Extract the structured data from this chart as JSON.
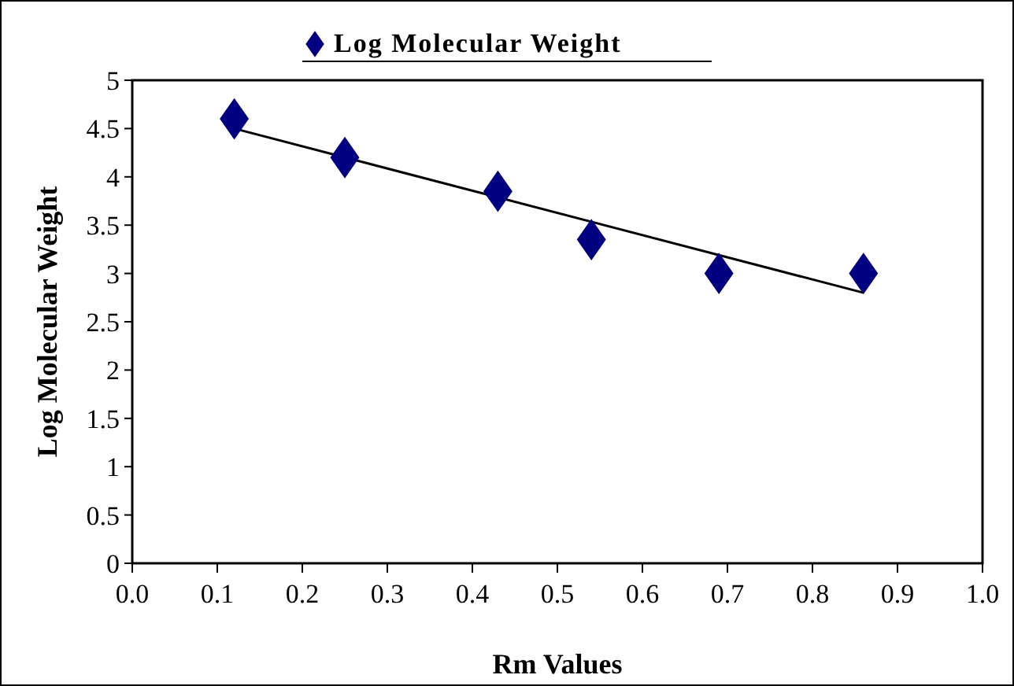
{
  "chart_data": {
    "type": "scatter",
    "xlabel": "Rm Values",
    "ylabel": "Log Molecular Weight",
    "xlim": [
      0,
      1
    ],
    "xticks": [
      {
        "value": 0,
        "label": "0.0"
      },
      {
        "value": 0.1,
        "label": "0.1"
      },
      {
        "value": 0.2,
        "label": "0.2"
      },
      {
        "value": 0.3,
        "label": "0.3"
      },
      {
        "value": 0.4,
        "label": "0.4"
      },
      {
        "value": 0.5,
        "label": "0.5"
      },
      {
        "value": 0.6,
        "label": "0.6"
      },
      {
        "value": 0.7,
        "label": "0.7"
      },
      {
        "value": 0.8,
        "label": "0.8"
      },
      {
        "value": 0.9,
        "label": "0.9"
      },
      {
        "value": 1,
        "label": "1.0"
      }
    ],
    "ylim": [
      0,
      5
    ],
    "yticks": [
      0,
      0.5,
      1,
      1.5,
      2,
      2.5,
      3,
      3.5,
      4,
      4.5,
      5
    ],
    "grid": false,
    "legend": "top",
    "series": [
      {
        "name": "Log Molecular Weight",
        "marker": "diamond",
        "color": "#000080",
        "x": [
          0.12,
          0.25,
          0.43,
          0.54,
          0.69,
          0.86
        ],
        "values": [
          4.6,
          4.2,
          3.85,
          3.35,
          3.0,
          3.0
        ]
      },
      {
        "type": "line",
        "marker": "none",
        "color": "#000000",
        "x": [
          0.12,
          0.86
        ],
        "values": [
          4.5,
          2.8
        ]
      }
    ]
  }
}
